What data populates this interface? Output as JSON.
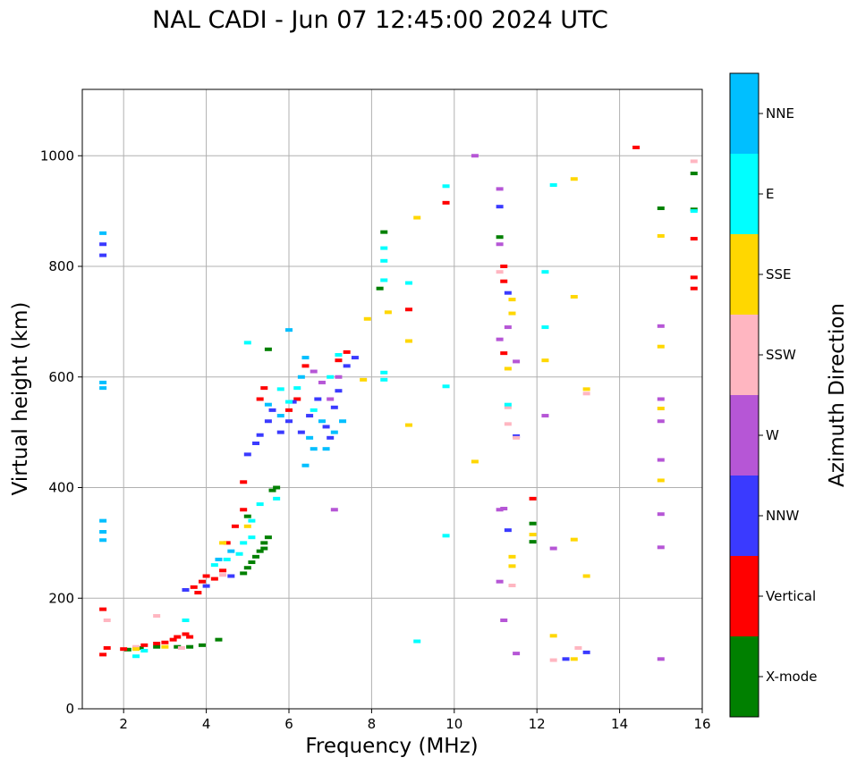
{
  "chart_data": {
    "type": "scatter",
    "title": "NAL CADI - Jun 07 12:45:00 2024 UTC",
    "xlabel": "Frequency (MHz)",
    "ylabel": "Virtual height (km)",
    "xlim": [
      1,
      16
    ],
    "ylim": [
      0,
      1120
    ],
    "x_ticks": [
      "2",
      "4",
      "6",
      "8",
      "10",
      "12",
      "14",
      "16"
    ],
    "y_ticks": [
      "0",
      "200",
      "400",
      "600",
      "800",
      "1000"
    ],
    "grid": true,
    "colorbar": {
      "label": "Azimuth Direction",
      "categories": [
        "X-mode",
        "Vertical",
        "NNW",
        "W",
        "SSW",
        "SSE",
        "E",
        "NNE"
      ],
      "colors": [
        "#008000",
        "#ff0000",
        "#3a3aff",
        "#b656d6",
        "#ffb6c1",
        "#ffd700",
        "#00ffff",
        "#00bfff"
      ]
    },
    "series": [
      {
        "name": "X-mode",
        "points": [
          [
            2.1,
            107
          ],
          [
            2.4,
            110
          ],
          [
            2.8,
            112
          ],
          [
            3.3,
            112
          ],
          [
            3.6,
            112
          ],
          [
            3.9,
            115
          ],
          [
            4.3,
            125
          ],
          [
            4.9,
            245
          ],
          [
            5.0,
            255
          ],
          [
            5.1,
            265
          ],
          [
            5.2,
            275
          ],
          [
            5.3,
            285
          ],
          [
            5.4,
            290
          ],
          [
            5.4,
            300
          ],
          [
            5.5,
            310
          ],
          [
            5.0,
            348
          ],
          [
            5.6,
            395
          ],
          [
            5.7,
            400
          ],
          [
            5.5,
            650
          ],
          [
            8.2,
            760
          ],
          [
            8.3,
            862
          ],
          [
            11.1,
            853
          ],
          [
            11.9,
            302
          ],
          [
            11.9,
            335
          ],
          [
            15.0,
            905
          ],
          [
            15.8,
            968
          ],
          [
            15.8,
            903
          ]
        ]
      },
      {
        "name": "Vertical",
        "points": [
          [
            1.5,
            180
          ],
          [
            1.5,
            98
          ],
          [
            1.6,
            110
          ],
          [
            2.0,
            108
          ],
          [
            2.3,
            110
          ],
          [
            2.5,
            115
          ],
          [
            2.8,
            118
          ],
          [
            3.0,
            120
          ],
          [
            3.2,
            125
          ],
          [
            3.3,
            130
          ],
          [
            3.5,
            135
          ],
          [
            3.6,
            130
          ],
          [
            3.7,
            220
          ],
          [
            3.8,
            210
          ],
          [
            3.9,
            230
          ],
          [
            4.0,
            240
          ],
          [
            4.2,
            235
          ],
          [
            4.4,
            250
          ],
          [
            4.5,
            300
          ],
          [
            4.7,
            330
          ],
          [
            4.9,
            360
          ],
          [
            4.9,
            410
          ],
          [
            5.3,
            560
          ],
          [
            5.4,
            580
          ],
          [
            6.0,
            540
          ],
          [
            6.2,
            560
          ],
          [
            6.4,
            620
          ],
          [
            7.2,
            630
          ],
          [
            7.4,
            645
          ],
          [
            8.9,
            722
          ],
          [
            9.8,
            915
          ],
          [
            11.2,
            800
          ],
          [
            11.2,
            773
          ],
          [
            11.2,
            643
          ],
          [
            11.9,
            380
          ],
          [
            14.4,
            1015
          ],
          [
            15.8,
            780
          ],
          [
            15.8,
            850
          ],
          [
            15.8,
            760
          ]
        ]
      },
      {
        "name": "NNW",
        "points": [
          [
            1.5,
            840
          ],
          [
            1.5,
            820
          ],
          [
            3.5,
            215
          ],
          [
            4.0,
            222
          ],
          [
            4.6,
            240
          ],
          [
            5.0,
            460
          ],
          [
            5.2,
            480
          ],
          [
            5.3,
            495
          ],
          [
            5.5,
            520
          ],
          [
            5.6,
            540
          ],
          [
            5.8,
            500
          ],
          [
            6.0,
            520
          ],
          [
            6.1,
            555
          ],
          [
            6.3,
            500
          ],
          [
            6.5,
            530
          ],
          [
            6.7,
            560
          ],
          [
            6.9,
            510
          ],
          [
            7.0,
            490
          ],
          [
            7.1,
            545
          ],
          [
            7.2,
            575
          ],
          [
            7.4,
            620
          ],
          [
            7.6,
            635
          ],
          [
            11.1,
            908
          ],
          [
            11.3,
            752
          ],
          [
            11.5,
            493
          ],
          [
            11.3,
            323
          ],
          [
            12.7,
            90
          ],
          [
            13.2,
            102
          ]
        ]
      },
      {
        "name": "W",
        "points": [
          [
            6.6,
            610
          ],
          [
            6.8,
            590
          ],
          [
            7.0,
            560
          ],
          [
            7.2,
            600
          ],
          [
            7.1,
            360
          ],
          [
            10.5,
            1000
          ],
          [
            11.1,
            940
          ],
          [
            11.1,
            840
          ],
          [
            11.1,
            668
          ],
          [
            11.3,
            690
          ],
          [
            11.5,
            628
          ],
          [
            11.1,
            360
          ],
          [
            11.2,
            362
          ],
          [
            11.1,
            230
          ],
          [
            11.2,
            160
          ],
          [
            11.5,
            100
          ],
          [
            12.2,
            530
          ],
          [
            12.4,
            290
          ],
          [
            15.0,
            692
          ],
          [
            15.0,
            560
          ],
          [
            15.0,
            520
          ],
          [
            15.0,
            450
          ],
          [
            15.0,
            352
          ],
          [
            15.0,
            292
          ],
          [
            15.0,
            90
          ]
        ]
      },
      {
        "name": "SSW",
        "points": [
          [
            1.6,
            160
          ],
          [
            2.8,
            168
          ],
          [
            2.3,
            112
          ],
          [
            3.4,
            110
          ],
          [
            4.4,
            242
          ],
          [
            11.1,
            790
          ],
          [
            11.3,
            545
          ],
          [
            11.3,
            515
          ],
          [
            11.5,
            490
          ],
          [
            11.4,
            223
          ],
          [
            12.4,
            88
          ],
          [
            13.0,
            110
          ],
          [
            13.2,
            570
          ],
          [
            15.8,
            990
          ]
        ]
      },
      {
        "name": "SSE",
        "points": [
          [
            2.3,
            108
          ],
          [
            3.0,
            112
          ],
          [
            4.4,
            300
          ],
          [
            5.0,
            330
          ],
          [
            7.8,
            595
          ],
          [
            7.9,
            705
          ],
          [
            8.4,
            717
          ],
          [
            8.9,
            665
          ],
          [
            8.9,
            513
          ],
          [
            9.1,
            888
          ],
          [
            10.5,
            447
          ],
          [
            11.3,
            615
          ],
          [
            11.4,
            740
          ],
          [
            11.4,
            715
          ],
          [
            11.4,
            275
          ],
          [
            11.4,
            258
          ],
          [
            11.9,
            315
          ],
          [
            12.2,
            630
          ],
          [
            12.4,
            132
          ],
          [
            12.9,
            958
          ],
          [
            12.9,
            745
          ],
          [
            12.9,
            306
          ],
          [
            13.2,
            578
          ],
          [
            13.2,
            240
          ],
          [
            12.9,
            90
          ],
          [
            15.0,
            855
          ],
          [
            15.0,
            655
          ],
          [
            15.0,
            543
          ],
          [
            15.0,
            413
          ]
        ]
      },
      {
        "name": "E",
        "points": [
          [
            2.3,
            95
          ],
          [
            2.5,
            105
          ],
          [
            3.5,
            160
          ],
          [
            4.2,
            260
          ],
          [
            4.5,
            270
          ],
          [
            4.8,
            280
          ],
          [
            5.1,
            340
          ],
          [
            5.3,
            370
          ],
          [
            5.7,
            380
          ],
          [
            4.9,
            300
          ],
          [
            5.1,
            310
          ],
          [
            5.0,
            662
          ],
          [
            5.8,
            578
          ],
          [
            6.0,
            555
          ],
          [
            6.2,
            580
          ],
          [
            6.6,
            540
          ],
          [
            7.0,
            600
          ],
          [
            7.2,
            640
          ],
          [
            8.3,
            833
          ],
          [
            8.3,
            810
          ],
          [
            8.3,
            775
          ],
          [
            8.3,
            608
          ],
          [
            8.3,
            595
          ],
          [
            8.9,
            770
          ],
          [
            9.1,
            122
          ],
          [
            9.8,
            945
          ],
          [
            9.8,
            583
          ],
          [
            9.8,
            313
          ],
          [
            11.3,
            550
          ],
          [
            12.2,
            790
          ],
          [
            12.2,
            690
          ],
          [
            12.4,
            947
          ],
          [
            15.8,
            900
          ]
        ]
      },
      {
        "name": "NNE",
        "points": [
          [
            1.5,
            860
          ],
          [
            1.5,
            590
          ],
          [
            1.5,
            580
          ],
          [
            1.5,
            340
          ],
          [
            1.5,
            320
          ],
          [
            1.5,
            305
          ],
          [
            4.3,
            270
          ],
          [
            4.6,
            285
          ],
          [
            5.5,
            550
          ],
          [
            5.8,
            530
          ],
          [
            6.0,
            685
          ],
          [
            6.3,
            600
          ],
          [
            6.4,
            635
          ],
          [
            6.5,
            490
          ],
          [
            6.6,
            470
          ],
          [
            6.8,
            520
          ],
          [
            6.9,
            470
          ],
          [
            7.1,
            500
          ],
          [
            7.3,
            520
          ],
          [
            6.4,
            440
          ]
        ]
      }
    ]
  }
}
